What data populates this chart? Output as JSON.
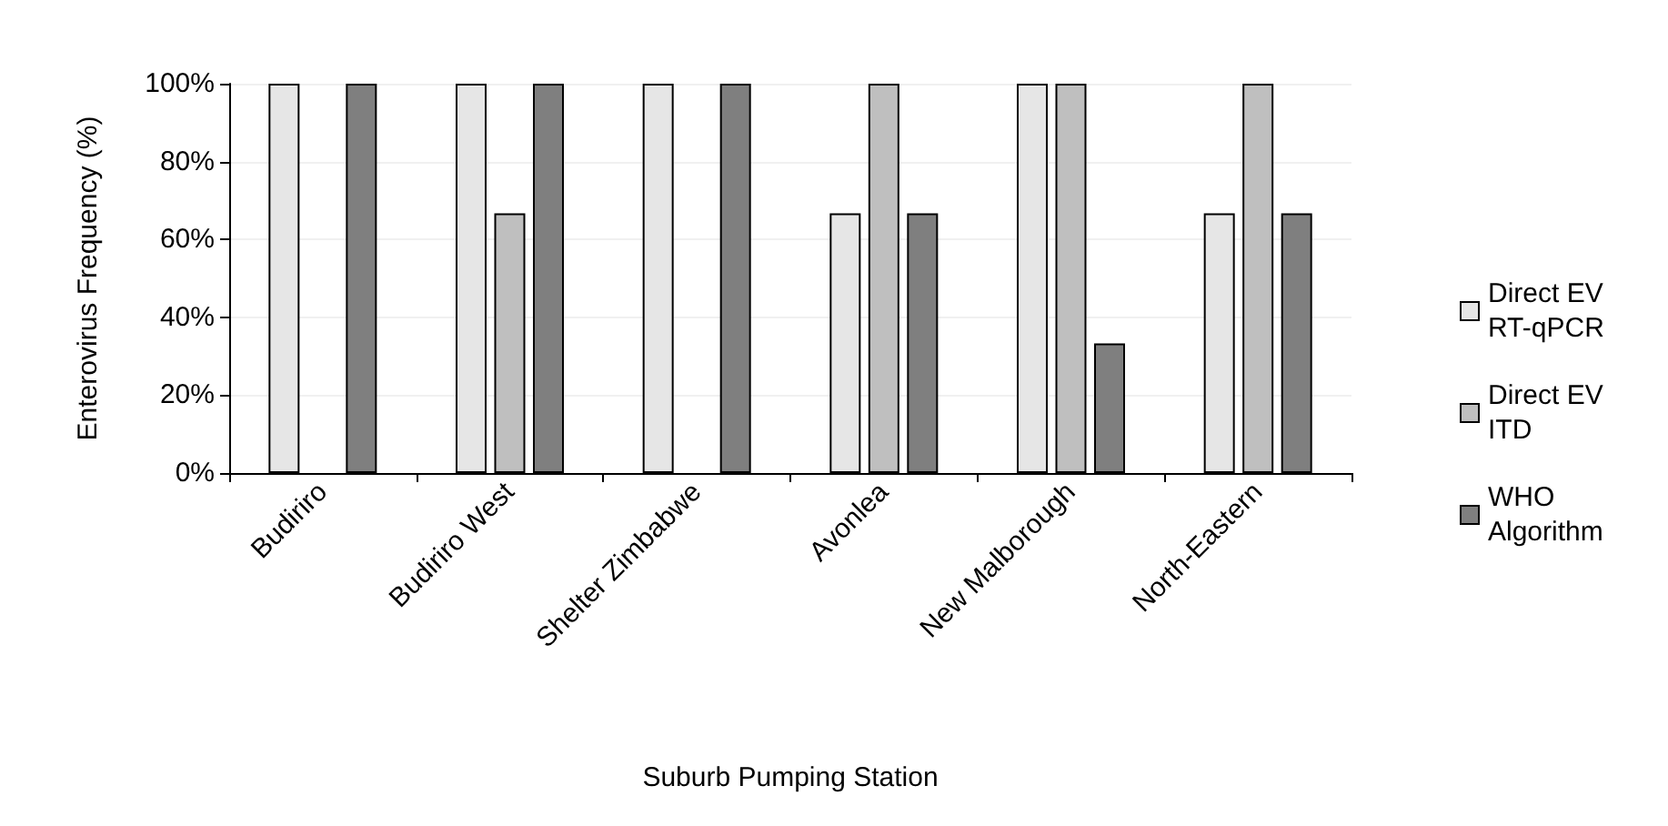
{
  "chart_data": {
    "type": "bar",
    "xlabel": "Suburb Pumping Station",
    "ylabel": "Enterovirus Frequency (%)",
    "categories": [
      "Budiriro",
      "Budiriro West",
      "Shelter Zimbabwe",
      "Avonlea",
      "New Malborough",
      "North-Eastern"
    ],
    "series": [
      {
        "name": "Direct EV RT-qPCR",
        "color": "#e6e6e6",
        "values": [
          100,
          100,
          100,
          66.7,
          100,
          66.7
        ]
      },
      {
        "name": "Direct EV ITD",
        "color": "#bfbfbf",
        "values": [
          null,
          66.7,
          null,
          100,
          100,
          100
        ]
      },
      {
        "name": "WHO Algorithm",
        "color": "#7f7f7f",
        "values": [
          100,
          100,
          100,
          66.7,
          33.3,
          66.7
        ]
      }
    ],
    "ylim": [
      0,
      100
    ],
    "yticks": [
      {
        "value": 0,
        "label": "0%"
      },
      {
        "value": 20,
        "label": "20%"
      },
      {
        "value": 40,
        "label": "40%"
      },
      {
        "value": 60,
        "label": "60%"
      },
      {
        "value": 80,
        "label": "80%"
      },
      {
        "value": 100,
        "label": "100%"
      }
    ],
    "grid": "y",
    "legend": "right"
  }
}
